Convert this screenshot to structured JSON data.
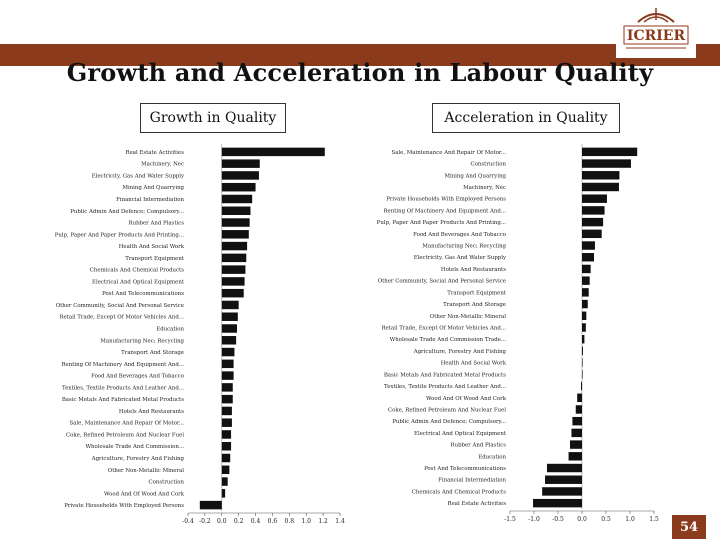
{
  "header": {
    "logo_text": "ICRIER",
    "title": "Growth and Acceleration in Labour Quality"
  },
  "panels": {
    "left_label": "Growth in Quality",
    "right_label": "Acceleration in Quality"
  },
  "footer": {
    "page_number": "54"
  },
  "colors": {
    "bar": "#111111",
    "brand": "#8b3a1c"
  },
  "chart_data": [
    {
      "type": "bar",
      "orientation": "horizontal",
      "title": "Growth in Quality",
      "xlim": [
        -0.4,
        1.4
      ],
      "xticks": [
        "-0.4",
        "-0.2",
        "0.0",
        "0.2",
        "0.4",
        "0.6",
        "0.8",
        "1.0",
        "1.2",
        "1.4"
      ],
      "categories": [
        "Real Estate Activities",
        "Machinery, Nec",
        "Electricity, Gas And Water Supply",
        "Mining And Quarrying",
        "Financial Intermediation",
        "Public Admin And Defence; Compulsory...",
        "Rubber And Plastics",
        "Pulp, Paper And Paper Products And Printing...",
        "Health And Social Work",
        "Transport Equipment",
        "Chemicals And Chemical Products",
        "Electrical And Optical Equipment",
        "Post And Telecommunications",
        "Other Community, Social And Personal Service",
        "Retail Trade, Except Of Motor Vehicles And...",
        "Education",
        "Manufacturing Nec; Recycling",
        "Transport And Storage",
        "Renting Of Machinery And Equipment And...",
        "Food And Beverages And Tobacco",
        "Textiles, Textile Products And Leather And...",
        "Basic Metals And Fabricated Metal Products",
        "Hotels And Restaurants",
        "Sale, Maintenance And Repair Of Motor...",
        "Coke, Refined Petroleum And Nuclear Fuel",
        "Wholesale Trade And Commission...",
        "Agriculture, Forestry And Fishing",
        "Other Non-Metallic Mineral",
        "Construction",
        "Wood And Of Wood And Cork",
        "Private Households With Employed Persons"
      ],
      "values": [
        1.22,
        0.45,
        0.44,
        0.4,
        0.36,
        0.34,
        0.33,
        0.32,
        0.3,
        0.29,
        0.28,
        0.27,
        0.26,
        0.2,
        0.19,
        0.18,
        0.17,
        0.15,
        0.14,
        0.14,
        0.13,
        0.13,
        0.12,
        0.12,
        0.11,
        0.11,
        0.1,
        0.09,
        0.07,
        0.04,
        -0.26
      ]
    },
    {
      "type": "bar",
      "orientation": "horizontal",
      "title": "Acceleration in Quality",
      "xlim": [
        -1.5,
        1.5
      ],
      "xticks": [
        "-1.5",
        "-1.0",
        "-0.5",
        "0.0",
        "0.5",
        "1.0",
        "1.5"
      ],
      "categories": [
        "Sale, Maintenance And Repair Of Motor...",
        "Construction",
        "Mining And Quarrying",
        "Machinery, Nec",
        "Private Households With Employed Persons",
        "Renting Of Machinery And Equipment And...",
        "Pulp, Paper And Paper Products And Printing...",
        "Food And Beverages And Tobacco",
        "Manufacturing Nec; Recycling",
        "Electricity, Gas And Water Supply",
        "Hotels And Restaurants",
        "Other Community, Social And Personal Service",
        "Transport Equipment",
        "Transport And Storage",
        "Other Non-Metallic Mineral",
        "Retail Trade, Except Of Motor Vehicles And...",
        "Wholesale Trade And Commission Trade...",
        "Agriculture, Forestry And Fishing",
        "Health And Social Work",
        "Basic Metals And Fabricated Metal Products",
        "Textiles, Textile Products And Leather And...",
        "Wood And Of Wood And Cork",
        "Coke, Refined Petroleum And Nuclear Fuel",
        "Public Admin And Defence; Compulsory...",
        "Electrical And Optical Equipment",
        "Rubber And Plastics",
        "Education",
        "Post And Telecommunications",
        "Financial Intermediation",
        "Chemicals And Chemical Products",
        "Real Estate Activities"
      ],
      "values": [
        1.15,
        1.02,
        0.78,
        0.77,
        0.52,
        0.47,
        0.44,
        0.41,
        0.27,
        0.25,
        0.18,
        0.16,
        0.14,
        0.12,
        0.09,
        0.08,
        0.05,
        0.02,
        0.01,
        0.0,
        -0.02,
        -0.1,
        -0.13,
        -0.2,
        -0.22,
        -0.25,
        -0.28,
        -0.73,
        -0.77,
        -0.83,
        -1.02
      ]
    }
  ]
}
